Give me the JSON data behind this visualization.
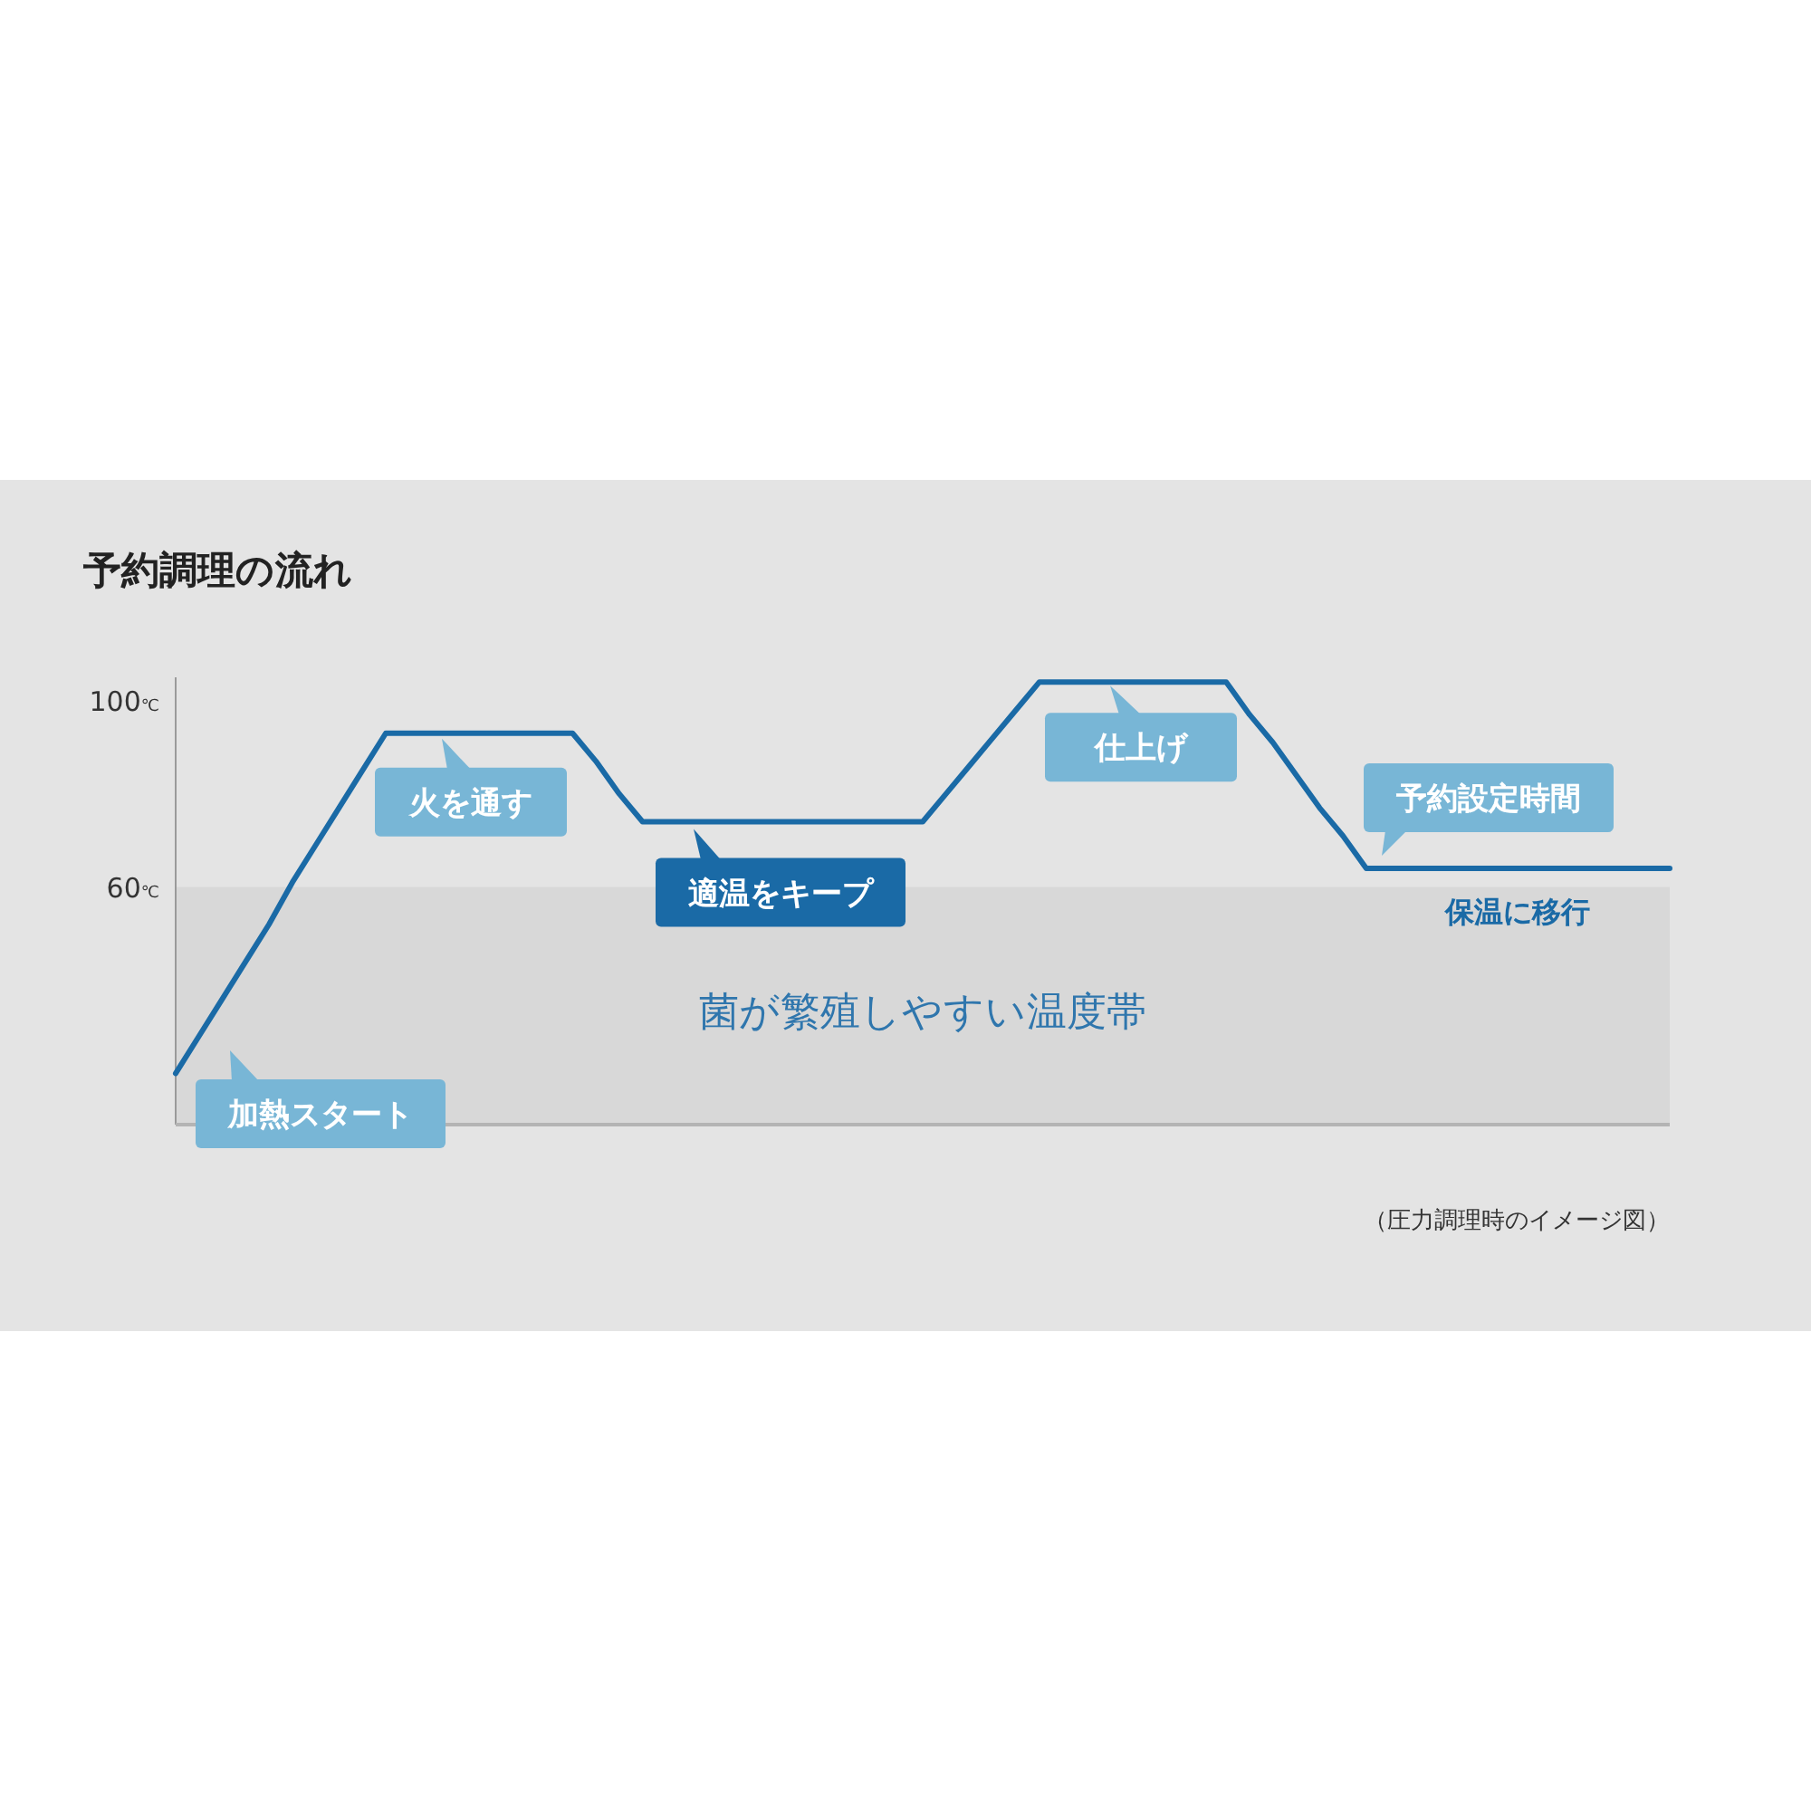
{
  "chart_data": {
    "type": "line",
    "title": "予約調理の流れ",
    "categories": [
      null,
      null,
      null,
      null,
      null,
      null,
      null,
      null,
      null,
      null,
      null,
      null,
      null,
      null,
      null,
      null,
      null,
      null,
      null,
      null,
      null,
      null,
      null,
      null,
      null,
      null,
      null,
      null,
      null,
      null,
      null,
      null,
      null,
      null,
      null,
      null,
      null,
      null,
      null,
      null,
      null,
      null,
      null,
      null,
      null,
      null,
      null,
      null,
      null,
      null,
      null,
      null,
      null,
      null,
      null,
      null,
      null,
      null,
      null,
      null,
      null,
      null,
      null,
      null,
      null
    ],
    "series": [
      {
        "color": "#1a6aa6",
        "values": [
          20,
          28,
          36,
          44,
          52,
          61,
          69,
          77,
          85,
          93,
          93,
          93,
          93,
          93,
          93,
          93,
          93,
          93,
          87,
          80,
          74,
          74,
          74,
          74,
          74,
          74,
          74,
          74,
          74,
          74,
          74,
          74,
          74,
          80,
          86,
          92,
          98,
          104,
          104,
          104,
          104,
          104,
          104,
          104,
          104,
          104,
          97,
          91,
          84,
          77,
          71,
          64,
          64,
          64,
          64,
          64,
          64,
          64,
          64,
          64,
          64,
          64,
          64,
          64,
          64
        ]
      }
    ],
    "ylim": [
      9,
      105
    ],
    "yticks": [
      {
        "value": 100,
        "label": "100℃"
      },
      {
        "value": 60,
        "label": "60℃"
      }
    ],
    "tick_labels": "y",
    "bands": [
      {
        "axis": "y",
        "from": 9,
        "to": 60,
        "label": "菌が繁殖しやすい温度帯",
        "color": "#d8d8d8"
      }
    ],
    "annotations": [
      "加熱スタート",
      {
        "text": "火を通す",
        "y": 93
      },
      {
        "text": "適温をキープ",
        "y": 74
      },
      {
        "text": "仕上げ",
        "y": 104
      },
      {
        "text": "予約設定時間",
        "y": 64
      },
      {
        "text": "保温に移行",
        "y": 64
      },
      "（圧力調理時のイメージ図）"
    ]
  }
}
